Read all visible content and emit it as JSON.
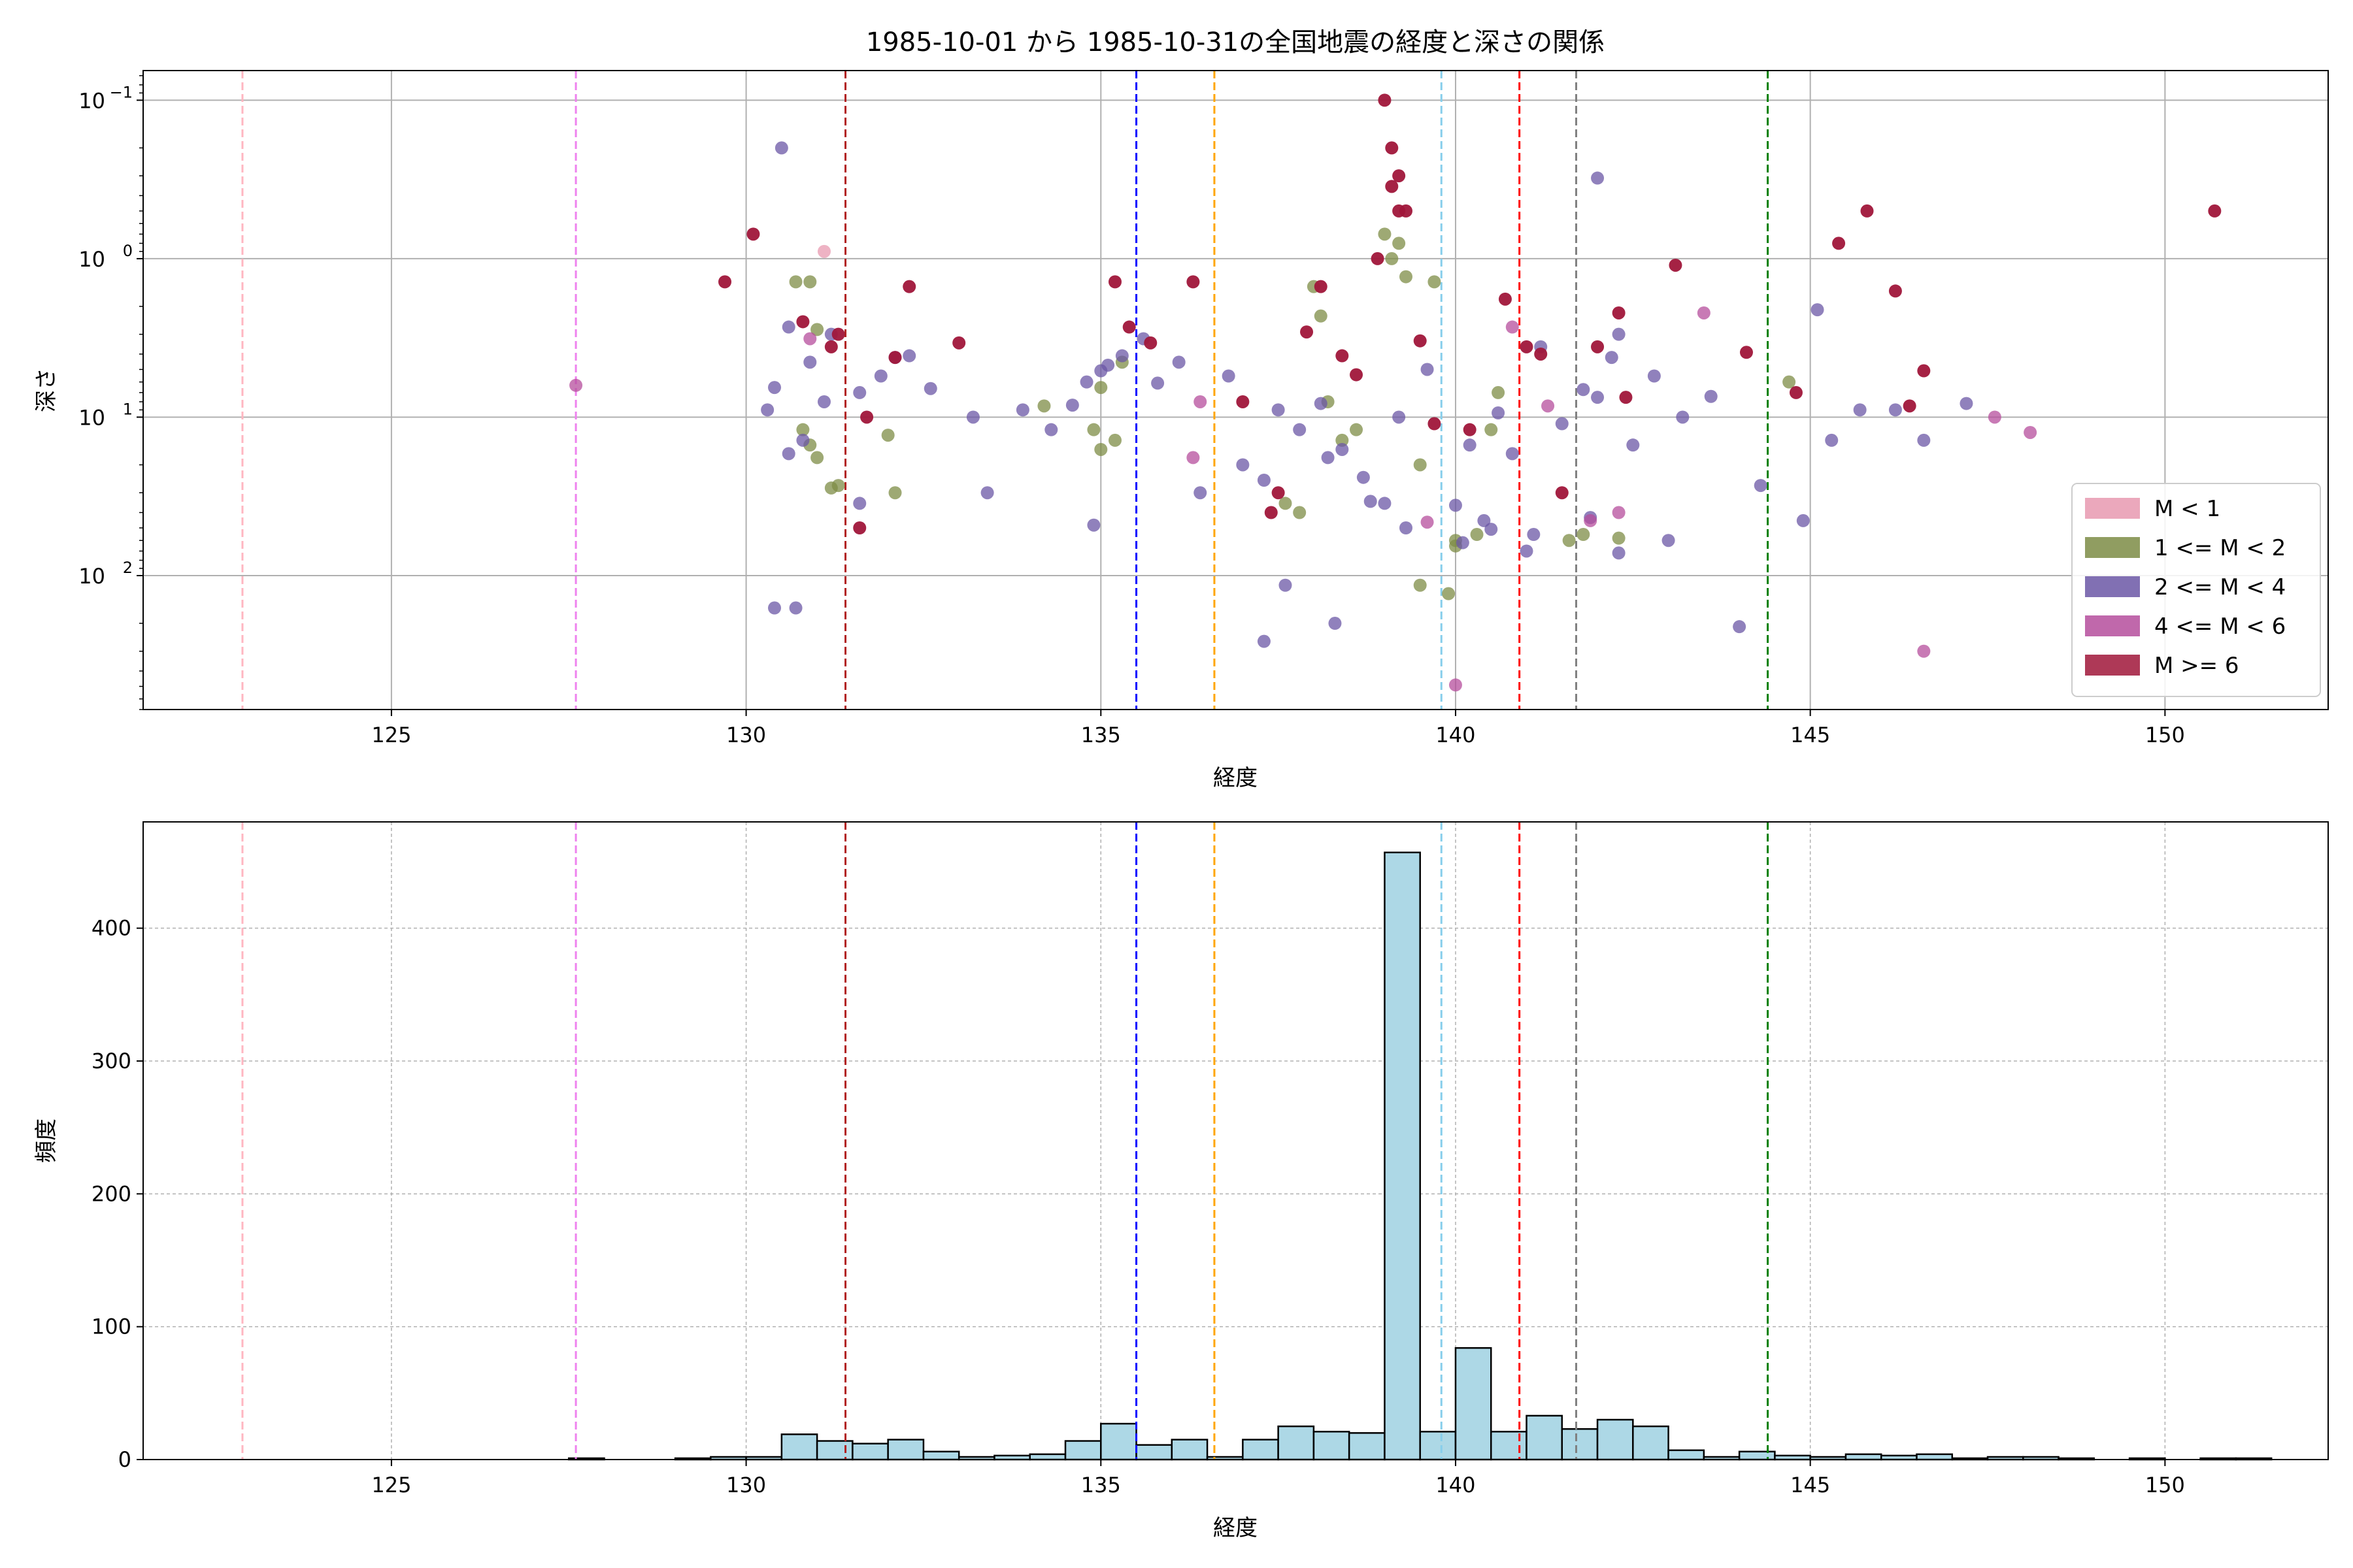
{
  "title": "1985-10-01 から 1985-10-31の全国地震の経度と深さの関係",
  "colors": {
    "M<1": "#e899b0",
    "1<=M<2": "#7d8c45",
    "2<=M<4": "#6b57a6",
    "4<=M<6": "#b54e9c",
    "M>=6": "#a0163a",
    "hist_fill": "#add8e6",
    "grid": "#b0b0b0"
  },
  "reference_lines": [
    {
      "x": 122.9,
      "color": "#ffb6c1"
    },
    {
      "x": 127.6,
      "color": "#ee82ee"
    },
    {
      "x": 131.4,
      "color": "#b22222"
    },
    {
      "x": 135.5,
      "color": "#0000ff"
    },
    {
      "x": 136.6,
      "color": "#ffa500"
    },
    {
      "x": 139.8,
      "color": "#87ceeb"
    },
    {
      "x": 140.9,
      "color": "#ff0000"
    },
    {
      "x": 141.7,
      "color": "#808080"
    },
    {
      "x": 144.4,
      "color": "#008000"
    }
  ],
  "chart_data": [
    {
      "type": "scatter",
      "title": "1985-10-01 から 1985-10-31の全国地震の経度と深さの関係",
      "xlabel": "経度",
      "ylabel": "深さ",
      "xlim": [
        121.5,
        152.3
      ],
      "ylim": [
        700,
        0.065
      ],
      "yscale": "log",
      "inverted_y": true,
      "x_ticks": [
        125,
        130,
        135,
        140,
        145,
        150
      ],
      "y_ticks": [
        {
          "value": 0.1,
          "base": "10",
          "exp": "−1"
        },
        {
          "value": 1,
          "base": "10",
          "exp": "0"
        },
        {
          "value": 10,
          "base": "10",
          "exp": "1"
        },
        {
          "value": 100,
          "base": "10",
          "exp": "2"
        }
      ],
      "grid": true,
      "legend_position": "lower-right",
      "legend": [
        "M < 1",
        "1 <= M < 2",
        "2 <= M < 4",
        "4 <= M < 6",
        "M >= 6"
      ],
      "series": [
        {
          "name": "M < 1",
          "color_key": "M<1",
          "x": [
            131.1
          ],
          "y": [
            0.9
          ]
        },
        {
          "name": "1 <= M < 2",
          "color_key": "1<=M<2",
          "x": [
            130.7,
            130.9,
            131.0,
            130.8,
            130.9,
            131.0,
            131.2,
            131.3,
            132.0,
            132.1,
            134.2,
            134.9,
            135.0,
            135.2,
            135.3,
            135.0,
            137.6,
            137.8,
            138.0,
            138.1,
            138.2,
            138.4,
            138.6,
            139.0,
            139.1,
            139.2,
            139.3,
            139.5,
            139.7,
            140.0,
            140.3,
            140.5,
            140.6,
            141.6,
            141.8,
            142.3,
            144.7,
            139.5,
            140.0,
            139.9
          ],
          "y": [
            1.4,
            1.4,
            2.8,
            12,
            15,
            18,
            28,
            27,
            13,
            30,
            8.5,
            12,
            16,
            14,
            4.5,
            6.5,
            35,
            40,
            1.5,
            2.3,
            8,
            14,
            12,
            0.7,
            1.0,
            0.8,
            1.3,
            20,
            1.4,
            65,
            55,
            12,
            7,
            60,
            55,
            58,
            6,
            115,
            60,
            130
          ]
        },
        {
          "name": "2 <= M < 4",
          "color_key": "2<=M<4",
          "x": [
            130.5,
            130.3,
            130.4,
            130.6,
            130.9,
            131.2,
            131.1,
            130.8,
            130.6,
            130.4,
            131.6,
            131.9,
            132.1,
            132.3,
            132.6,
            133.2,
            133.4,
            133.9,
            134.3,
            134.6,
            134.8,
            135.0,
            135.1,
            135.3,
            135.6,
            135.8,
            136.1,
            136.4,
            136.8,
            137.0,
            137.3,
            137.5,
            137.8,
            138.1,
            138.4,
            138.7,
            139.0,
            139.2,
            139.6,
            140.0,
            140.2,
            140.4,
            140.6,
            140.8,
            141.2,
            141.5,
            141.8,
            142.0,
            142.2,
            142.5,
            142.8,
            143.2,
            143.6,
            144.0,
            144.3,
            144.9,
            145.1,
            145.3,
            145.7,
            146.2,
            146.6,
            147.2,
            130.7,
            131.6,
            134.9,
            137.3,
            138.2,
            138.8,
            139.3,
            140.1,
            140.5,
            141.0,
            141.9,
            142.3,
            143.0,
            142.3,
            141.1,
            142.0,
            138.3,
            137.6
          ],
          "y": [
            0.2,
            9,
            6.5,
            2.7,
            4.5,
            3,
            8,
            14,
            17,
            160,
            7,
            5.5,
            4.2,
            4.1,
            6.6,
            10,
            30,
            9,
            12,
            8.4,
            6,
            5.1,
            4.7,
            4.1,
            3.2,
            6.1,
            4.5,
            30,
            5.5,
            20,
            25,
            9,
            12,
            8.2,
            16,
            24,
            35,
            10,
            5,
            36,
            15,
            45,
            9.4,
            17,
            3.6,
            11,
            6.7,
            7.5,
            4.2,
            15,
            5.5,
            10,
            7.4,
            210,
            27,
            45,
            2.1,
            14,
            9,
            9,
            14,
            8.2,
            160,
            35,
            48,
            260,
            18,
            34,
            50,
            62,
            51,
            70,
            43,
            72,
            60,
            3.0,
            55,
            0.31,
            200,
            115
          ]
        },
        {
          "name": "4 <= M < 6",
          "color_key": "4<=M<6",
          "x": [
            127.6,
            130.9,
            136.3,
            136.4,
            139.6,
            140.8,
            141.3,
            141.9,
            142.3,
            143.5,
            146.6,
            147.6,
            148.1,
            140.0
          ],
          "y": [
            6.3,
            3.2,
            18,
            8,
            46,
            2.7,
            8.5,
            45,
            40,
            2.2,
            300,
            10,
            12.5,
            490
          ]
        },
        {
          "name": "M >= 6",
          "color_key": "M>=6",
          "x": [
            129.7,
            130.1,
            130.8,
            131.2,
            131.3,
            131.7,
            132.3,
            132.1,
            131.6,
            133.0,
            135.2,
            135.4,
            135.7,
            136.3,
            137.0,
            137.5,
            137.9,
            138.1,
            138.4,
            138.6,
            138.9,
            139.0,
            139.1,
            139.1,
            139.2,
            139.2,
            139.3,
            139.5,
            140.7,
            141.0,
            141.2,
            141.5,
            142.0,
            142.4,
            143.1,
            144.1,
            144.8,
            145.4,
            145.8,
            146.2,
            146.4,
            146.6,
            150.7,
            137.4,
            140.2,
            139.7,
            142.3
          ],
          "y": [
            1.4,
            0.7,
            2.5,
            3.6,
            3.0,
            10,
            1.5,
            4.2,
            50,
            3.4,
            1.4,
            2.7,
            3.4,
            1.4,
            8,
            30,
            2.9,
            1.5,
            4.1,
            5.4,
            1.0,
            0.1,
            0.2,
            0.35,
            0.3,
            0.5,
            0.5,
            3.3,
            1.8,
            3.6,
            4.0,
            30,
            3.6,
            7.5,
            1.1,
            3.9,
            7,
            0.8,
            0.5,
            1.6,
            8.5,
            5.1,
            0.5,
            40,
            12,
            11,
            2.2
          ]
        }
      ]
    },
    {
      "type": "bar",
      "xlabel": "経度",
      "ylabel": "頻度",
      "xlim": [
        121.5,
        152.3
      ],
      "ylim": [
        0,
        480
      ],
      "x_ticks": [
        125,
        130,
        135,
        140,
        145,
        150
      ],
      "y_ticks": [
        0,
        100,
        200,
        300,
        400
      ],
      "grid": true,
      "bin_width": 0.5,
      "bin_starts": [
        127.5,
        128.0,
        128.5,
        129.0,
        129.5,
        130.0,
        130.5,
        131.0,
        131.5,
        132.0,
        132.5,
        133.0,
        133.5,
        134.0,
        134.5,
        135.0,
        135.5,
        136.0,
        136.5,
        137.0,
        137.5,
        138.0,
        138.5,
        139.0,
        139.5,
        140.0,
        140.5,
        141.0,
        141.5,
        142.0,
        142.5,
        143.0,
        143.5,
        144.0,
        144.5,
        145.0,
        145.5,
        146.0,
        146.5,
        147.0,
        147.5,
        148.0,
        148.5,
        149.0,
        149.5,
        150.0,
        150.5,
        151.0
      ],
      "values": [
        1,
        0,
        0,
        1,
        2,
        2,
        19,
        14,
        12,
        15,
        6,
        2,
        3,
        4,
        14,
        27,
        11,
        15,
        2,
        15,
        25,
        21,
        20,
        457,
        21,
        84,
        21,
        33,
        23,
        30,
        25,
        7,
        2,
        6,
        3,
        2,
        4,
        3,
        4,
        1,
        2,
        2,
        1,
        0,
        1,
        0,
        1,
        1
      ]
    }
  ]
}
